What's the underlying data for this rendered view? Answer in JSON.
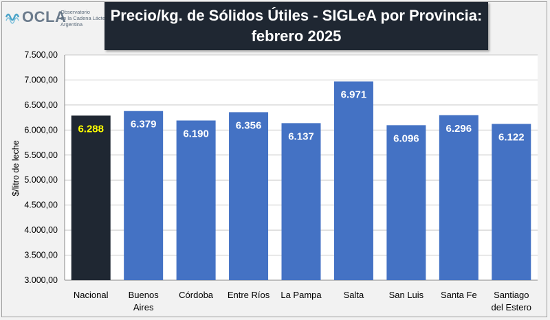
{
  "logo": {
    "text": "OCLA",
    "sub_lines": [
      "Observatorio",
      "de la Cadena Láctea",
      "Argentina"
    ]
  },
  "title_lines": [
    "Precio/kg. de Sólidos Útiles - SIGLeA por Provincia:",
    "febrero 2025"
  ],
  "chart_data": {
    "type": "bar",
    "ylabel": "$/litro de leche",
    "ylim": [
      3000,
      7500
    ],
    "yticks": [
      3000,
      3500,
      4000,
      4500,
      5000,
      5500,
      6000,
      6500,
      7000,
      7500
    ],
    "ytick_labels": [
      "3.000,00",
      "3.500,00",
      "4.000,00",
      "4.500,00",
      "5.000,00",
      "5.500,00",
      "6.000,00",
      "6.500,00",
      "7.000,00",
      "7.500,00"
    ],
    "grid": true,
    "categories": [
      [
        "Nacional"
      ],
      [
        "Buenos",
        "Aires"
      ],
      [
        "Córdoba"
      ],
      [
        "Entre Ríos"
      ],
      [
        "La Pampa"
      ],
      [
        "Salta"
      ],
      [
        "San Luis"
      ],
      [
        "Santa Fe"
      ],
      [
        "Santiago",
        "del Estero"
      ]
    ],
    "values": [
      6288,
      6379,
      6190,
      6356,
      6137,
      6971,
      6096,
      6296,
      6122
    ],
    "value_labels": [
      "6.288",
      "6.379",
      "6.190",
      "6.356",
      "6.137",
      "6.971",
      "6.096",
      "6.296",
      "6.122"
    ],
    "colors": {
      "highlight_bar": "#1f2732",
      "bar": "#4472c4",
      "highlight_label": "#ffff00",
      "label": "#ffffff",
      "grid": "#c8c8c8",
      "plot_bg": "#ffffff"
    },
    "highlight_index": 0
  }
}
